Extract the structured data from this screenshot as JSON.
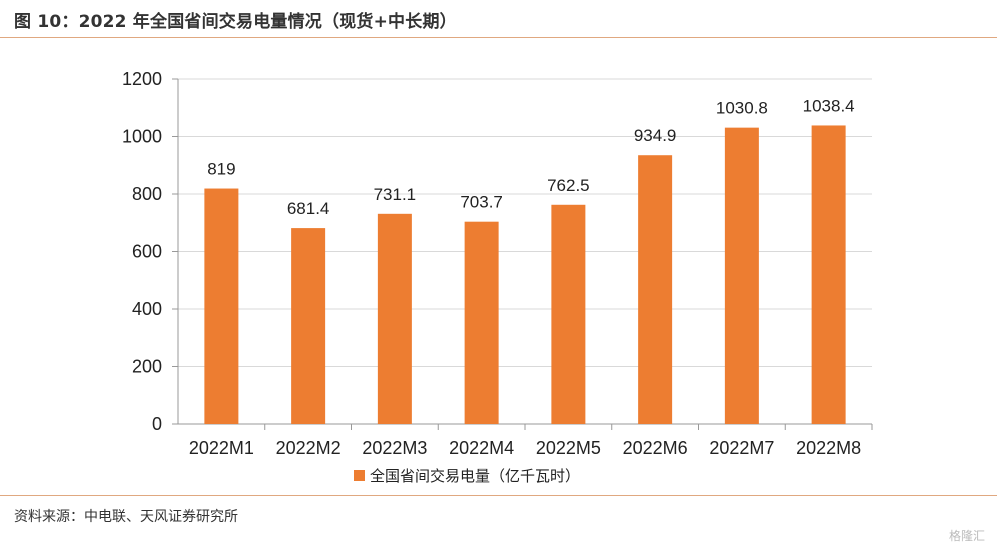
{
  "figure": {
    "title": "图 10：2022 年全国省间交易电量情况（现货+中长期）",
    "source": "资料来源：中电联、天风证券研究所",
    "watermark": "格隆汇"
  },
  "chart_data": {
    "type": "bar",
    "categories": [
      "2022M1",
      "2022M2",
      "2022M3",
      "2022M4",
      "2022M5",
      "2022M6",
      "2022M7",
      "2022M8"
    ],
    "series": [
      {
        "name": "全国省间交易电量（亿千瓦时）",
        "values": [
          819,
          681.4,
          731.1,
          703.7,
          762.5,
          934.9,
          1030.8,
          1038.4
        ],
        "color": "#ED7D31"
      }
    ],
    "data_labels": [
      "819",
      "681.4",
      "731.1",
      "703.7",
      "762.5",
      "934.9",
      "1030.8",
      "1038.4"
    ],
    "ylim": [
      0,
      1200
    ],
    "yticks": [
      0,
      200,
      400,
      600,
      800,
      1000,
      1200
    ],
    "grid": true,
    "legend_position": "bottom",
    "axis_color": "#999999",
    "grid_color": "#d9d9d9"
  }
}
